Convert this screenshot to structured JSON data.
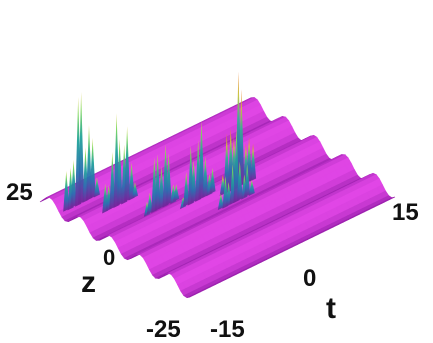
{
  "chart_data": {
    "type": "surface3d",
    "title": "",
    "axes": {
      "z": {
        "label": "z",
        "ticks": [
          "25",
          "0",
          "-25"
        ],
        "range": [
          -25,
          25
        ]
      },
      "t": {
        "label": "t",
        "ticks": [
          "15",
          "0",
          "-15"
        ],
        "range": [
          -15,
          15
        ]
      }
    },
    "background_wave": {
      "description_values": {
        "amplitude": 0.15,
        "period_z": 10,
        "count": 6
      }
    },
    "peaks": [
      {
        "t": -12,
        "z": 18,
        "height": 1.0
      },
      {
        "t": -9,
        "z": 12,
        "height": 0.85
      },
      {
        "t": -6,
        "z": 5,
        "height": 0.65
      },
      {
        "t": -2,
        "z": 2,
        "height": 0.7
      },
      {
        "t": 3,
        "z": 0,
        "height": 0.95
      },
      {
        "t": 1,
        "z": -4,
        "height": 0.55
      }
    ],
    "colors": {
      "base": "#cc33cc",
      "base_dark": "#8a1f96",
      "mid": "#2aa0a0",
      "high": "#6fd35a",
      "top": "#f08a2a"
    }
  }
}
